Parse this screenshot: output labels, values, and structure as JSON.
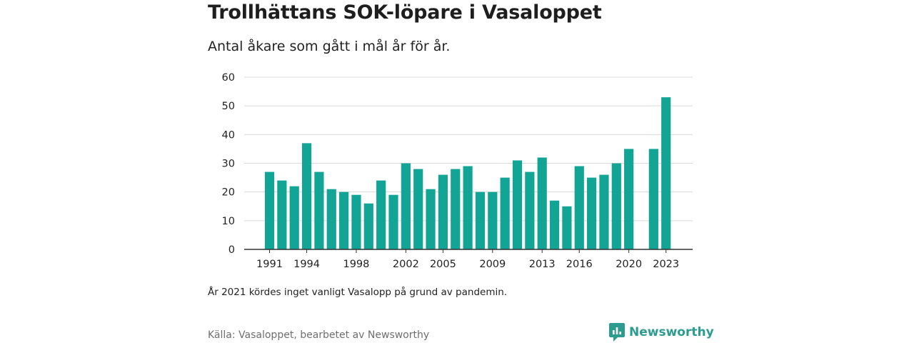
{
  "header": {
    "title": "Trollhättans SOK-löpare i Vasaloppet",
    "subtitle": "Antal åkare som gått i mål år för år."
  },
  "footer": {
    "note": "År 2021 kördes inget vanligt Vasalopp på grund av pandemin.",
    "source": "Källa: Vasaloppet, bearbetet av Newsworthy",
    "brand": "Newsworthy",
    "brand_icon": "newsworthy-logo-icon"
  },
  "colors": {
    "bar": "#12a596",
    "grid": "#d9d9d9",
    "axis": "#333333",
    "brand": "#2b9c8f"
  },
  "chart_data": {
    "type": "bar",
    "categories": [
      "1991",
      "1992",
      "1993",
      "1994",
      "1995",
      "1996",
      "1997",
      "1998",
      "1999",
      "2000",
      "2001",
      "2002",
      "2003",
      "2004",
      "2005",
      "2006",
      "2007",
      "2008",
      "2009",
      "2010",
      "2011",
      "2012",
      "2013",
      "2014",
      "2015",
      "2016",
      "2017",
      "2018",
      "2019",
      "2020",
      "2021",
      "2022",
      "2023"
    ],
    "values": [
      27,
      24,
      22,
      37,
      27,
      21,
      20,
      19,
      16,
      24,
      19,
      30,
      28,
      21,
      26,
      28,
      29,
      20,
      20,
      25,
      31,
      27,
      32,
      17,
      15,
      29,
      25,
      26,
      30,
      35,
      null,
      35,
      53
    ],
    "x_tick_labels": [
      "1991",
      "1994",
      "1998",
      "2002",
      "2005",
      "2009",
      "2013",
      "2016",
      "2020",
      "2023"
    ],
    "y_ticks": [
      0,
      10,
      20,
      30,
      40,
      50,
      60
    ],
    "ylim": [
      0,
      60
    ],
    "grid": true,
    "legend": "none"
  }
}
